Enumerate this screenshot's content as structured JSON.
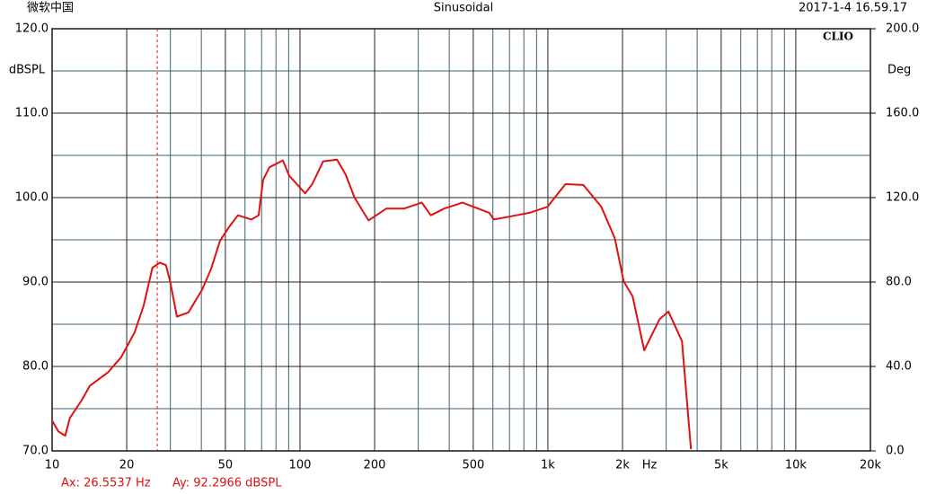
{
  "header": {
    "left": "微软中国",
    "center": "Sinusoidal",
    "right": "2017-1-4 16.59.17"
  },
  "chart_data": {
    "type": "line",
    "logo": "CLIO",
    "log_x": true,
    "grid": true,
    "ylabel": "dBSPL",
    "y2label": "Deg",
    "xlabel": "Hz",
    "xlim": [
      10,
      20000
    ],
    "ylim": [
      70,
      120
    ],
    "y2lim": [
      0,
      200
    ],
    "xticks": [
      10,
      20,
      50,
      100,
      200,
      500,
      {
        "value": 1000,
        "label": "1k"
      },
      {
        "value": 2000,
        "label": "2k"
      },
      {
        "value": 5000,
        "label": "5k"
      },
      {
        "value": 10000,
        "label": "10k"
      },
      {
        "value": 20000,
        "label": "20k"
      }
    ],
    "xgrid": [
      30,
      40,
      60,
      70,
      80,
      90,
      300,
      400,
      600,
      700,
      800,
      900,
      3000,
      4000,
      6000,
      7000,
      8000,
      9000
    ],
    "yticks": [
      {
        "value": 70,
        "label": "70.0"
      },
      {
        "value": 80,
        "label": "80.0"
      },
      {
        "value": 90,
        "label": "90.0"
      },
      {
        "value": 100,
        "label": "100.0"
      },
      {
        "value": 110,
        "label": "110.0"
      },
      {
        "value": 120,
        "label": "120.0"
      }
    ],
    "ygrid": [
      75,
      85,
      95,
      105,
      115
    ],
    "y2ticks": [
      {
        "value": 0,
        "label": "0.0"
      },
      {
        "value": 40,
        "label": "40.0"
      },
      {
        "value": 80,
        "label": "80.0"
      },
      {
        "value": 120,
        "label": "120.0"
      },
      {
        "value": 160,
        "label": "160.0"
      },
      {
        "value": 200,
        "label": "200.0"
      }
    ],
    "x": [
      10,
      10.6,
      11.3,
      11.8,
      13.1,
      14.2,
      16.8,
      19.0,
      21.5,
      23.4,
      25.4,
      27.2,
      28.8,
      30.0,
      31.9,
      35.5,
      40.3,
      43.7,
      47.6,
      51.7,
      56.2,
      63.7,
      68.1,
      71.0,
      75.3,
      85.3,
      90.4,
      105,
      112,
      124,
      141,
      153,
      166,
      189,
      223,
      263,
      310,
      337,
      382,
      452,
      580,
      605,
      714,
      843,
      996,
      1177,
      1390,
      1642,
      1861,
      2022,
      2197,
      2446,
      2821,
      3066,
      3475,
      3776
    ],
    "series": [
      {
        "name": "SPL",
        "color": "#e01010",
        "values": [
          73.6,
          72.3,
          71.8,
          73.9,
          75.9,
          77.7,
          79.3,
          81.1,
          84.0,
          87.2,
          91.7,
          92.3,
          92.0,
          89.9,
          85.9,
          86.4,
          89.1,
          91.5,
          94.9,
          96.5,
          97.9,
          97.4,
          97.9,
          102.1,
          103.6,
          104.4,
          102.6,
          100.5,
          101.6,
          104.3,
          104.5,
          102.7,
          100.0,
          97.3,
          98.7,
          98.7,
          99.4,
          97.9,
          98.7,
          99.4,
          98.2,
          97.4,
          97.8,
          98.2,
          98.9,
          101.6,
          101.5,
          98.9,
          95.2,
          90.1,
          88.3,
          81.9,
          85.6,
          86.5,
          83.0,
          70.2
        ]
      }
    ],
    "cursor": {
      "x": 26.5537,
      "color": "#e01010",
      "ax_label": "Ax: 26.5537 Hz",
      "ay_label": "Ay: 92.2966 dBSPL"
    }
  }
}
